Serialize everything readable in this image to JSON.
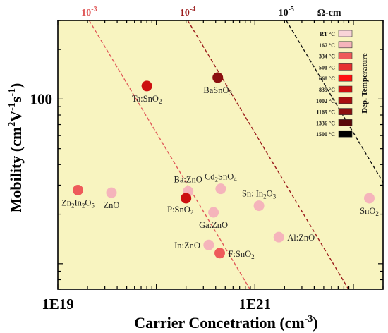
{
  "chart_data": {
    "type": "scatter",
    "title": "",
    "xlabel": "Carrier Concetration (cm",
    "xlabel_sup": "-3",
    "xlabel_end": ")",
    "ylabel": "Mobility (cm",
    "ylabel_sup1": "2",
    "ylabel_mid": "V",
    "ylabel_sup2": "-1",
    "ylabel_mid2": "s",
    "ylabel_sup3": "-1",
    "ylabel_end": ")",
    "x_scale": "log",
    "y_scale": "log",
    "xlim": [
      1e+19,
      2e+22
    ],
    "ylim": [
      7,
      300
    ],
    "x_tick_values": [
      1e+19,
      1e+21
    ],
    "x_tick_labels": [
      "1E19",
      "1E21"
    ],
    "y_tick_values": [
      100
    ],
    "y_tick_labels": [
      "100"
    ],
    "grid": false,
    "background_color": "#f8f4c0",
    "resistivity_lines": [
      {
        "label": "10",
        "label_exp": "-3",
        "rho": 0.001,
        "color": "#e05a5a",
        "style": "dashed"
      },
      {
        "label": "10",
        "label_exp": "-4",
        "rho": 0.0001,
        "color": "#9b1c1c",
        "style": "dashed"
      },
      {
        "label": "10",
        "label_exp": "-5",
        "rho": 1e-05,
        "color": "#111111",
        "style": "dashed"
      }
    ],
    "resistivity_unit": "Ω-cm",
    "points": [
      {
        "label": "Ta:SnO",
        "sub": "2",
        "x": 8e+19,
        "y": 120,
        "color": "#cc1010",
        "label_pos": "below"
      },
      {
        "label": "BaSnO",
        "sub": "3",
        "x": 4.2e+20,
        "y": 135,
        "color": "#8b0f0f",
        "label_pos": "below"
      },
      {
        "label": "Zn",
        "sub": "2",
        "label2": "In",
        "sub2": "2",
        "label3": "O",
        "sub3": "5",
        "x": 1.6e+19,
        "y": 28,
        "color": "#ee5a5a",
        "label_pos": "below"
      },
      {
        "label": "ZnO",
        "x": 3.5e+19,
        "y": 27,
        "color": "#f5b4bb",
        "label_pos": "below"
      },
      {
        "label": "Ba:ZnO",
        "x": 2.1e+20,
        "y": 27.5,
        "color": "#f5b4bb",
        "label_pos": "above"
      },
      {
        "label": "Cd",
        "sub": "2",
        "label2": "SnO",
        "sub2": "4",
        "x": 4.5e+20,
        "y": 28.5,
        "color": "#f5b4bb",
        "label_pos": "above"
      },
      {
        "label": "P:SnO",
        "sub": "2",
        "x": 2e+20,
        "y": 25,
        "color": "#cc1010",
        "label_pos": "below-left"
      },
      {
        "label": "Sn: In",
        "sub": "2",
        "label2": "O",
        "sub2": "3",
        "x": 1.1e+21,
        "y": 22.5,
        "color": "#f5b4bb",
        "label_pos": "above"
      },
      {
        "label": "SnO",
        "sub": "2",
        "x": 1.45e+22,
        "y": 25,
        "color": "#f5b4bb",
        "label_pos": "below"
      },
      {
        "label": "Ga:ZnO",
        "x": 3.8e+20,
        "y": 20.5,
        "color": "#f5b4bb",
        "label_pos": "below"
      },
      {
        "label": "Al:ZnO",
        "x": 1.75e+21,
        "y": 14.5,
        "color": "#f5b4bb",
        "label_pos": "right"
      },
      {
        "label": "In:ZnO",
        "x": 3.4e+20,
        "y": 13,
        "color": "#f5b4bb",
        "label_pos": "left"
      },
      {
        "label": "F:SnO",
        "sub": "2",
        "x": 4.4e+20,
        "y": 11.6,
        "color": "#ee5a5a",
        "label_pos": "right"
      }
    ],
    "legend": {
      "title": "Dep. Temperature",
      "placement": "top-right",
      "entries": [
        {
          "label": "RT °C",
          "color": "#f9d4d8"
        },
        {
          "label": "167 °C",
          "color": "#f5b4bb"
        },
        {
          "label": "334 °C",
          "color": "#ee5a5a"
        },
        {
          "label": "501 °C",
          "color": "#e63030"
        },
        {
          "label": "668 °C",
          "color": "#ff1010"
        },
        {
          "label": "835 °C",
          "color": "#cc1010"
        },
        {
          "label": "1002 °C",
          "color": "#a80f0f"
        },
        {
          "label": "1169 °C",
          "color": "#8b0f0f"
        },
        {
          "label": "1336 °C",
          "color": "#5a0808"
        },
        {
          "label": "1500 °C",
          "color": "#000000"
        }
      ]
    }
  }
}
